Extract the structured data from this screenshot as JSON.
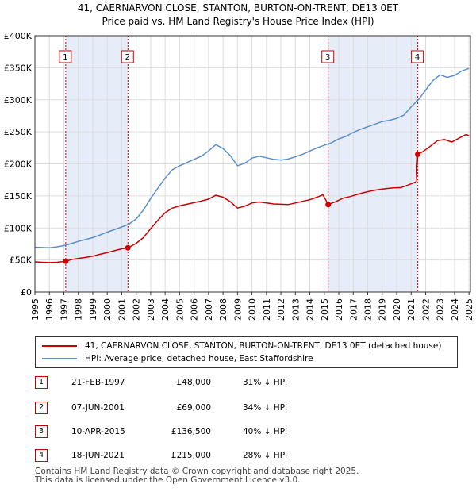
{
  "header": {
    "title_line1": "41, CAERNARVON CLOSE, STANTON, BURTON-ON-TRENT, DE13 0ET",
    "title_line2": "Price paid vs. HM Land Registry's House Price Index (HPI)"
  },
  "chart_data": {
    "type": "line",
    "ylim": [
      0,
      400000
    ],
    "xlim": [
      1995,
      2025.1
    ],
    "y_ticks": [
      {
        "value": 0,
        "label": "£0"
      },
      {
        "value": 50000,
        "label": "£50K"
      },
      {
        "value": 100000,
        "label": "£100K"
      },
      {
        "value": 150000,
        "label": "£150K"
      },
      {
        "value": 200000,
        "label": "£200K"
      },
      {
        "value": 250000,
        "label": "£250K"
      },
      {
        "value": 300000,
        "label": "£300K"
      },
      {
        "value": 350000,
        "label": "£350K"
      },
      {
        "value": 400000,
        "label": "£400K"
      }
    ],
    "x_ticks": [
      "1995",
      "1996",
      "1997",
      "1998",
      "1999",
      "2000",
      "2001",
      "2002",
      "2003",
      "2004",
      "2005",
      "2006",
      "2007",
      "2008",
      "2009",
      "2010",
      "2011",
      "2012",
      "2013",
      "2014",
      "2015",
      "2016",
      "2017",
      "2018",
      "2019",
      "2020",
      "2021",
      "2022",
      "2023",
      "2024",
      "2025"
    ],
    "series": [
      {
        "name": "41, CAERNARVON CLOSE, STANTON, BURTON-ON-TRENT, DE13 0ET (detached house)",
        "color": "#cc0000",
        "points": [
          [
            1995.0,
            47000
          ],
          [
            1995.5,
            46500
          ],
          [
            1996.0,
            46000
          ],
          [
            1996.5,
            46500
          ],
          [
            1997.13,
            48000
          ],
          [
            1997.6,
            51000
          ],
          [
            1998.0,
            52500
          ],
          [
            1998.5,
            54000
          ],
          [
            1999.0,
            56000
          ],
          [
            1999.5,
            59000
          ],
          [
            2000.0,
            61500
          ],
          [
            2000.5,
            64500
          ],
          [
            2001.0,
            67500
          ],
          [
            2001.43,
            69000
          ],
          [
            2002.0,
            76000
          ],
          [
            2002.5,
            85000
          ],
          [
            2003.0,
            99000
          ],
          [
            2003.5,
            112000
          ],
          [
            2004.0,
            124000
          ],
          [
            2004.5,
            131000
          ],
          [
            2005.0,
            134500
          ],
          [
            2005.5,
            137000
          ],
          [
            2006.0,
            139500
          ],
          [
            2006.5,
            142000
          ],
          [
            2007.0,
            145000
          ],
          [
            2007.5,
            151000
          ],
          [
            2008.0,
            148000
          ],
          [
            2008.5,
            141000
          ],
          [
            2009.0,
            131000
          ],
          [
            2009.5,
            134000
          ],
          [
            2010.0,
            139000
          ],
          [
            2010.5,
            140500
          ],
          [
            2011.0,
            139000
          ],
          [
            2011.5,
            137500
          ],
          [
            2012.0,
            137000
          ],
          [
            2012.5,
            136500
          ],
          [
            2013.0,
            139000
          ],
          [
            2013.5,
            141500
          ],
          [
            2014.0,
            144000
          ],
          [
            2014.5,
            148000
          ],
          [
            2014.9,
            152000
          ],
          [
            2015.27,
            136500
          ],
          [
            2015.8,
            141000
          ],
          [
            2016.3,
            146500
          ],
          [
            2016.8,
            149000
          ],
          [
            2017.3,
            152500
          ],
          [
            2017.8,
            155500
          ],
          [
            2018.3,
            158000
          ],
          [
            2018.8,
            160000
          ],
          [
            2019.3,
            161500
          ],
          [
            2019.8,
            162500
          ],
          [
            2020.3,
            163000
          ],
          [
            2020.8,
            167000
          ],
          [
            2021.35,
            172000
          ],
          [
            2021.46,
            215000
          ],
          [
            2021.8,
            219000
          ],
          [
            2022.3,
            227000
          ],
          [
            2022.8,
            236000
          ],
          [
            2023.3,
            238000
          ],
          [
            2023.8,
            234000
          ],
          [
            2024.3,
            240000
          ],
          [
            2024.8,
            246000
          ],
          [
            2025.0,
            244000
          ]
        ]
      },
      {
        "name": "HPI: Average price, detached house, East Staffordshire",
        "color": "#5b8fcc",
        "points": [
          [
            1995.0,
            70000
          ],
          [
            1995.5,
            69500
          ],
          [
            1996.0,
            69000
          ],
          [
            1996.5,
            70500
          ],
          [
            1997.0,
            72500
          ],
          [
            1997.5,
            75500
          ],
          [
            1998.0,
            79000
          ],
          [
            1998.5,
            82000
          ],
          [
            1999.0,
            85000
          ],
          [
            1999.5,
            89000
          ],
          [
            2000.0,
            93500
          ],
          [
            2000.5,
            97500
          ],
          [
            2001.0,
            101500
          ],
          [
            2001.5,
            106000
          ],
          [
            2002.0,
            114000
          ],
          [
            2002.5,
            128000
          ],
          [
            2003.0,
            146000
          ],
          [
            2003.5,
            162000
          ],
          [
            2004.0,
            178000
          ],
          [
            2004.5,
            191000
          ],
          [
            2005.0,
            197000
          ],
          [
            2005.5,
            202000
          ],
          [
            2006.0,
            207000
          ],
          [
            2006.5,
            212000
          ],
          [
            2007.0,
            220000
          ],
          [
            2007.5,
            230000
          ],
          [
            2008.0,
            224000
          ],
          [
            2008.5,
            213000
          ],
          [
            2009.0,
            197000
          ],
          [
            2009.5,
            201000
          ],
          [
            2010.0,
            209000
          ],
          [
            2010.5,
            212000
          ],
          [
            2011.0,
            209500
          ],
          [
            2011.5,
            207000
          ],
          [
            2012.0,
            206000
          ],
          [
            2012.5,
            207500
          ],
          [
            2013.0,
            211000
          ],
          [
            2013.5,
            215000
          ],
          [
            2014.0,
            220000
          ],
          [
            2014.5,
            225000
          ],
          [
            2015.0,
            229000
          ],
          [
            2015.5,
            233000
          ],
          [
            2016.0,
            239000
          ],
          [
            2016.5,
            243000
          ],
          [
            2017.0,
            249000
          ],
          [
            2017.5,
            254000
          ],
          [
            2018.0,
            258000
          ],
          [
            2018.5,
            262000
          ],
          [
            2019.0,
            266000
          ],
          [
            2019.5,
            268000
          ],
          [
            2020.0,
            271000
          ],
          [
            2020.5,
            276000
          ],
          [
            2021.0,
            289000
          ],
          [
            2021.5,
            300000
          ],
          [
            2022.0,
            315000
          ],
          [
            2022.5,
            330000
          ],
          [
            2023.0,
            339000
          ],
          [
            2023.5,
            335000
          ],
          [
            2024.0,
            338000
          ],
          [
            2024.5,
            345000
          ],
          [
            2025.0,
            349000
          ]
        ]
      }
    ],
    "sales": [
      {
        "num": "1",
        "x": 1997.13,
        "price": 48000
      },
      {
        "num": "2",
        "x": 2001.43,
        "price": 69000
      },
      {
        "num": "3",
        "x": 2015.27,
        "price": 136500
      },
      {
        "num": "4",
        "x": 2021.46,
        "price": 215000
      }
    ],
    "shaded_spans": [
      [
        1997.13,
        2001.43
      ],
      [
        2015.27,
        2021.46
      ]
    ],
    "hatched_span": [
      2025.0,
      2025.1
    ]
  },
  "legend": {
    "property_label": "41, CAERNARVON CLOSE, STANTON, BURTON-ON-TRENT, DE13 0ET (detached house)",
    "hpi_label": "HPI: Average price, detached house, East Staffordshire",
    "property_color": "#cc0000",
    "hpi_color": "#5b8fcc"
  },
  "sales_table": [
    {
      "num": "1",
      "date": "21-FEB-1997",
      "price": "£48,000",
      "hpi": "31% ↓ HPI"
    },
    {
      "num": "2",
      "date": "07-JUN-2001",
      "price": "£69,000",
      "hpi": "34% ↓ HPI"
    },
    {
      "num": "3",
      "date": "10-APR-2015",
      "price": "£136,500",
      "hpi": "40% ↓ HPI"
    },
    {
      "num": "4",
      "date": "18-JUN-2021",
      "price": "£215,000",
      "hpi": "28% ↓ HPI"
    }
  ],
  "footer": {
    "line1": "Contains HM Land Registry data © Crown copyright and database right 2025.",
    "line2": "This data is licensed under the Open Government Licence v3.0."
  }
}
